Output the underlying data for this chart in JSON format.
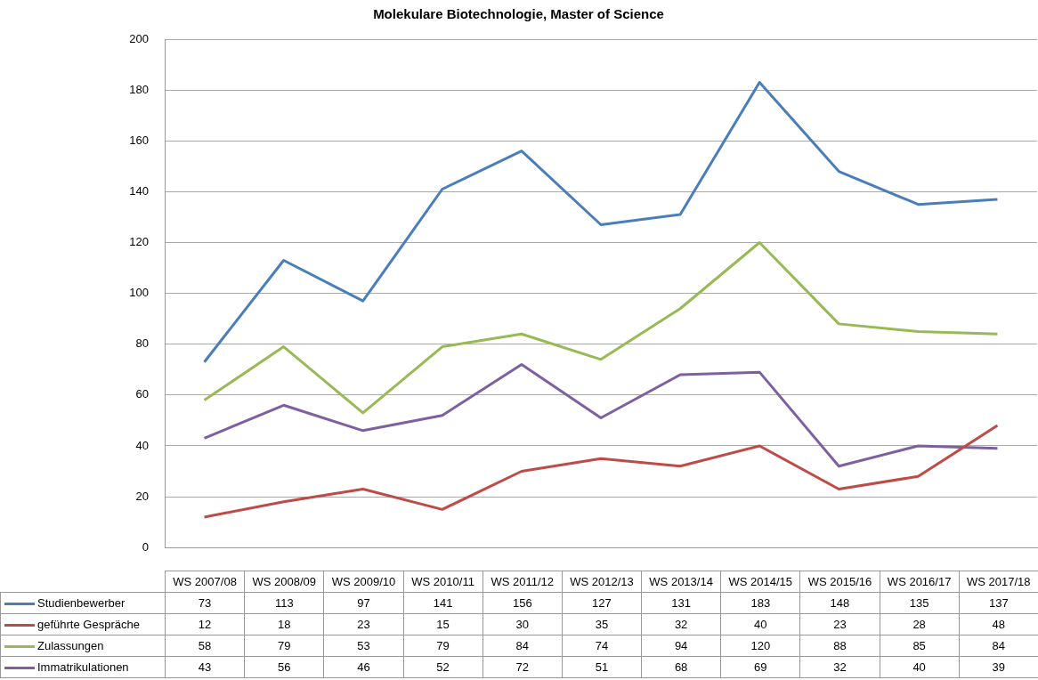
{
  "chart_data": {
    "type": "line",
    "title": "Molekulare Biotechnologie, Master of Science",
    "categories": [
      "WS 2007/08",
      "WS 2008/09",
      "WS 2009/10",
      "WS 2010/11",
      "WS 2011/12",
      "WS 2012/13",
      "WS 2013/14",
      "WS 2014/15",
      "WS 2015/16",
      "WS 2016/17",
      "WS 2017/18"
    ],
    "series": [
      {
        "name": "Studienbewerber",
        "color": "#4a7ebb",
        "values": [
          73,
          113,
          97,
          141,
          156,
          127,
          131,
          183,
          148,
          135,
          137
        ]
      },
      {
        "name": "geführte Gespräche",
        "color": "#be4b48",
        "values": [
          12,
          18,
          23,
          15,
          30,
          35,
          32,
          40,
          23,
          28,
          48
        ]
      },
      {
        "name": "Zulassungen",
        "color": "#98b954",
        "values": [
          58,
          79,
          53,
          79,
          84,
          74,
          94,
          120,
          88,
          85,
          84
        ]
      },
      {
        "name": "Immatrikulationen",
        "color": "#7d60a0",
        "values": [
          43,
          56,
          46,
          52,
          72,
          51,
          68,
          69,
          32,
          40,
          39
        ]
      }
    ],
    "ylim": [
      0,
      200
    ],
    "yticks": [
      0,
      20,
      40,
      60,
      80,
      100,
      120,
      140,
      160,
      180,
      200
    ],
    "grid": "y",
    "legend": "bottom",
    "marker": "none",
    "line_style": "solid",
    "data_labels": true
  }
}
